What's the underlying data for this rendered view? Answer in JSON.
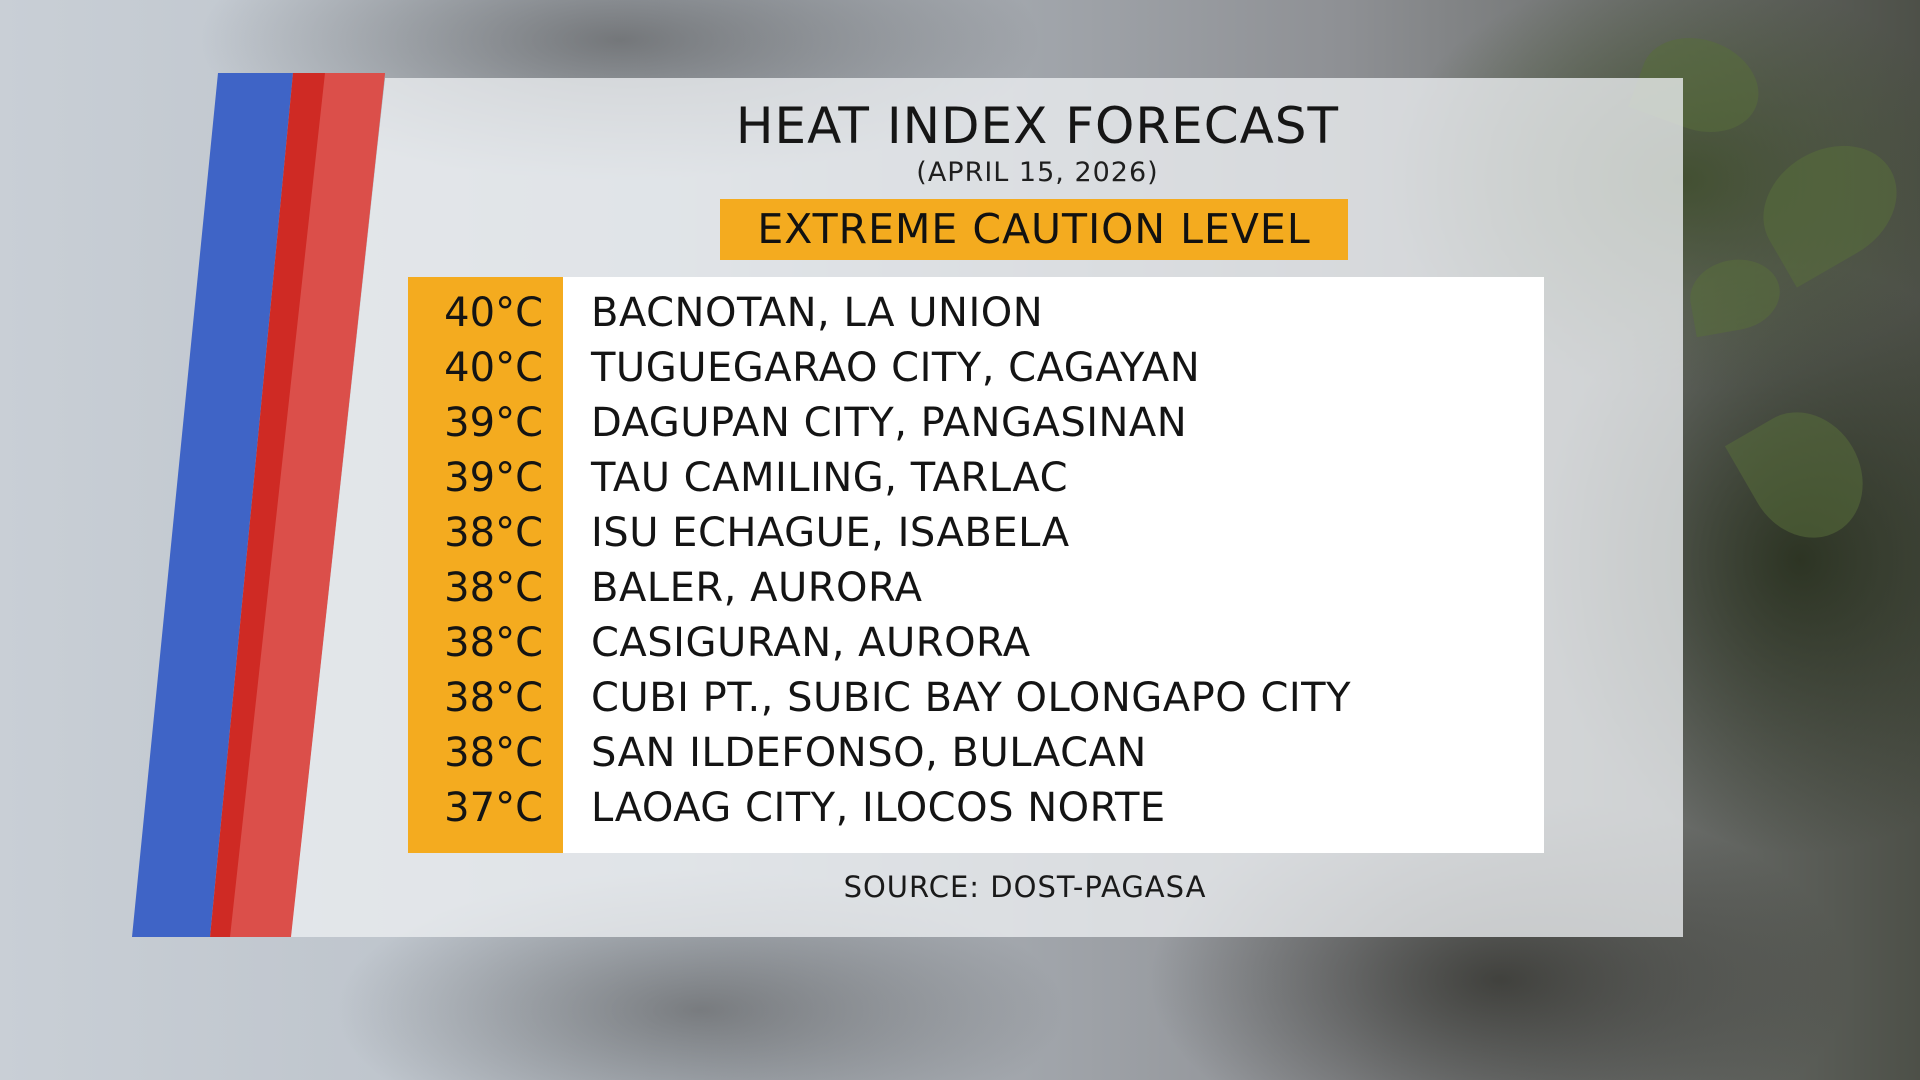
{
  "title": "HEAT INDEX FORECAST",
  "date": "(APRIL 15, 2026)",
  "level": "EXTREME CAUTION LEVEL",
  "rows": [
    {
      "temp": "40°C",
      "place": "BACNOTAN, LA UNION"
    },
    {
      "temp": "40°C",
      "place": "TUGUEGARAO CITY, CAGAYAN"
    },
    {
      "temp": "39°C",
      "place": "DAGUPAN CITY, PANGASINAN"
    },
    {
      "temp": "39°C",
      "place": "TAU CAMILING, TARLAC"
    },
    {
      "temp": "38°C",
      "place": "ISU ECHAGUE, ISABELA"
    },
    {
      "temp": "38°C",
      "place": "BALER, AURORA"
    },
    {
      "temp": "38°C",
      "place": "CASIGURAN, AURORA"
    },
    {
      "temp": "38°C",
      "place": "CUBI PT., SUBIC BAY OLONGAPO CITY"
    },
    {
      "temp": "38°C",
      "place": "SAN ILDEFONSO, BULACAN"
    },
    {
      "temp": "37°C",
      "place": "LAOAG CITY, ILOCOS NORTE"
    }
  ],
  "source": "SOURCE: DOST-PAGASA",
  "colors": {
    "accent_orange": "#f4ab1f",
    "stripe_blue": "#3f64c6",
    "stripe_red": "#cf2a24"
  }
}
